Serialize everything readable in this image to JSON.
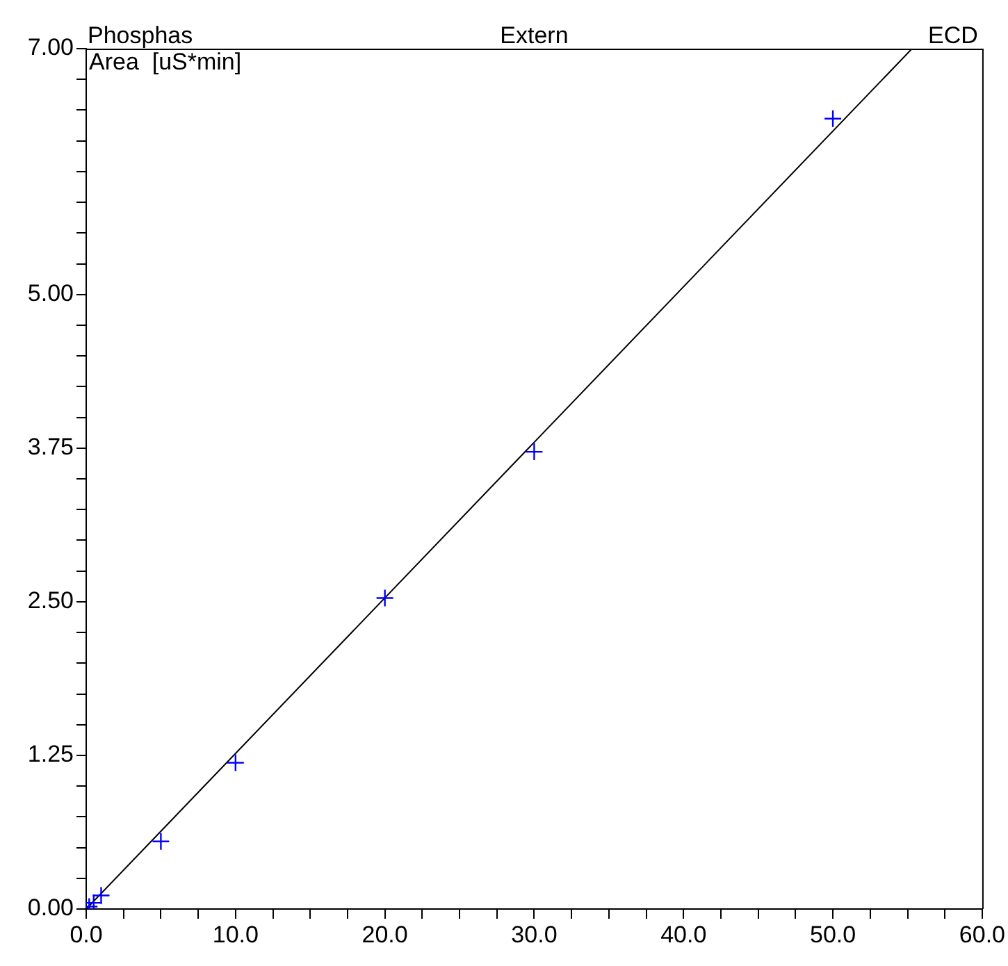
{
  "chart_data": {
    "type": "scatter",
    "title": "Phosphas",
    "subtitle": "Extern",
    "annotations": [
      "ECD"
    ],
    "ylabel": "Area  [uS*min]",
    "series": [
      {
        "marker": "cross",
        "color": "#0000ff",
        "x": [
          0.2,
          0.5,
          1,
          5,
          10,
          20,
          30,
          50
        ],
        "values": [
          0.02,
          0.05,
          0.11,
          0.55,
          1.19,
          2.53,
          3.72,
          6.43
        ]
      },
      {
        "type": "line",
        "marker": "none",
        "color": "#000000",
        "x": [
          0,
          55.3
        ],
        "values": [
          0,
          7
        ]
      }
    ],
    "grid": false,
    "legend": false,
    "xlim": [
      0,
      60
    ],
    "xticks": [
      {
        "value": 0,
        "label": "0.0"
      },
      {
        "value": 2.5,
        "label": null
      },
      {
        "value": 5,
        "label": null
      },
      {
        "value": 7.5,
        "label": null
      },
      {
        "value": 10,
        "label": "10.0"
      },
      {
        "value": 12.5,
        "label": null
      },
      {
        "value": 15,
        "label": null
      },
      {
        "value": 17.5,
        "label": null
      },
      {
        "value": 20,
        "label": "20.0"
      },
      {
        "value": 22.5,
        "label": null
      },
      {
        "value": 25,
        "label": null
      },
      {
        "value": 27.5,
        "label": null
      },
      {
        "value": 30,
        "label": "30.0"
      },
      {
        "value": 32.5,
        "label": null
      },
      {
        "value": 35,
        "label": null
      },
      {
        "value": 37.5,
        "label": null
      },
      {
        "value": 40,
        "label": "40.0"
      },
      {
        "value": 42.5,
        "label": null
      },
      {
        "value": 45,
        "label": null
      },
      {
        "value": 47.5,
        "label": null
      },
      {
        "value": 50,
        "label": "50.0"
      },
      {
        "value": 52.5,
        "label": null
      },
      {
        "value": 55,
        "label": null
      },
      {
        "value": 57.5,
        "label": null
      },
      {
        "value": 60,
        "label": "60.0"
      }
    ],
    "ylim": [
      0,
      7
    ],
    "yticks": [
      {
        "value": 0,
        "label": "0.00"
      },
      {
        "value": 0.25,
        "label": null
      },
      {
        "value": 0.5,
        "label": null
      },
      {
        "value": 0.75,
        "label": null
      },
      {
        "value": 1,
        "label": null
      },
      {
        "value": 1.25,
        "label": "1.25"
      },
      {
        "value": 1.5,
        "label": null
      },
      {
        "value": 1.75,
        "label": null
      },
      {
        "value": 2,
        "label": null
      },
      {
        "value": 2.25,
        "label": null
      },
      {
        "value": 2.5,
        "label": "2.50"
      },
      {
        "value": 2.75,
        "label": null
      },
      {
        "value": 3,
        "label": null
      },
      {
        "value": 3.25,
        "label": null
      },
      {
        "value": 3.5,
        "label": null
      },
      {
        "value": 3.75,
        "label": "3.75"
      },
      {
        "value": 4,
        "label": null
      },
      {
        "value": 4.25,
        "label": null
      },
      {
        "value": 4.5,
        "label": null
      },
      {
        "value": 4.75,
        "label": null
      },
      {
        "value": 5,
        "label": "5.00"
      },
      {
        "value": 5.25,
        "label": null
      },
      {
        "value": 5.5,
        "label": null
      },
      {
        "value": 5.75,
        "label": null
      },
      {
        "value": 6,
        "label": null
      },
      {
        "value": 6.25,
        "label": null
      },
      {
        "value": 6.5,
        "label": null
      },
      {
        "value": 6.75,
        "label": null
      },
      {
        "value": 7,
        "label": "7.00"
      }
    ]
  }
}
